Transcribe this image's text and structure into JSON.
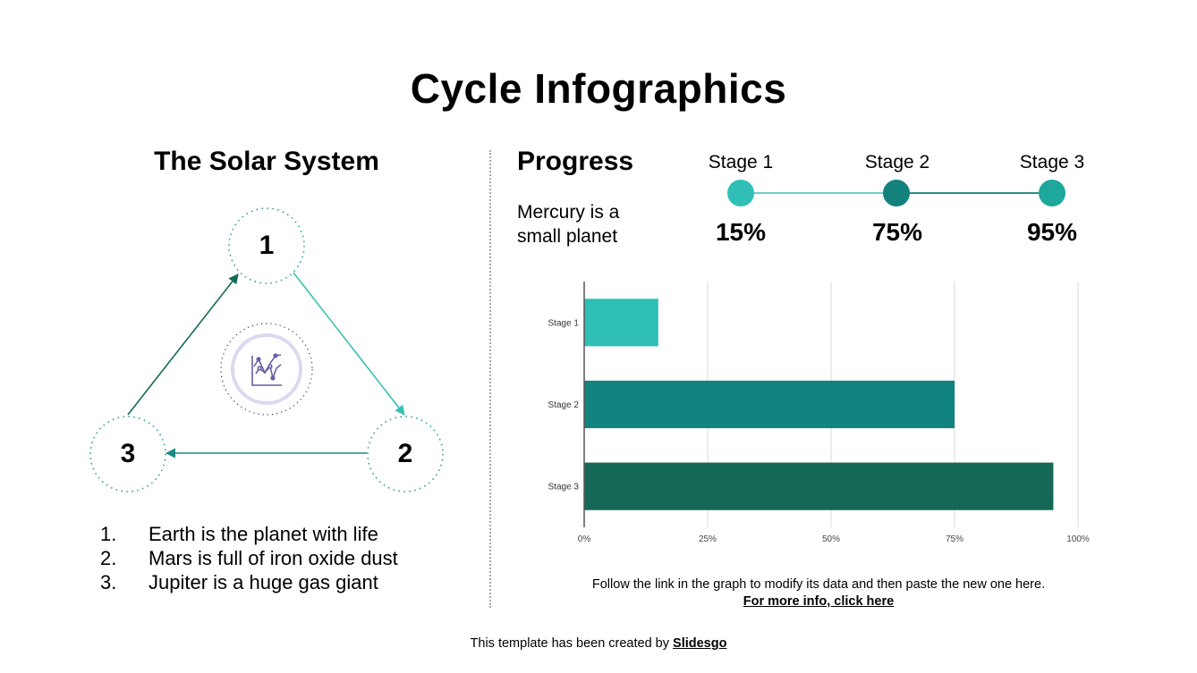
{
  "title": "Cycle Infographics",
  "left": {
    "heading": "The Solar System",
    "cycle": {
      "nodes": [
        {
          "label": "1"
        },
        {
          "label": "2"
        },
        {
          "label": "3"
        }
      ],
      "center_icon": "line-chart-icon",
      "colors": {
        "arrow_1_to_2": "#3bbfb4",
        "arrow_2_to_3": "#1a8a82",
        "arrow_3_to_1": "#156b57",
        "node_border": "#2a9d8f",
        "center_ring": "#7a6fb0"
      }
    },
    "list": [
      {
        "num": "1.",
        "text": "Earth is the planet with life"
      },
      {
        "num": "2.",
        "text": "Mars is full of iron oxide dust"
      },
      {
        "num": "3.",
        "text": "Jupiter is a huge gas giant"
      }
    ]
  },
  "right": {
    "heading": "Progress",
    "subtitle": "Mercury is a small planet",
    "stages": [
      {
        "label": "Stage 1",
        "percent": "15%",
        "color": "#2fbfb6"
      },
      {
        "label": "Stage 2",
        "percent": "75%",
        "color": "#13817c"
      },
      {
        "label": "Stage 3",
        "percent": "95%",
        "color": "#1ea79c"
      }
    ],
    "note_text": "Follow the link in the graph to modify its data and then paste the new one here.",
    "note_link": "For more info, click here"
  },
  "footer": {
    "text": "This template has been created by",
    "link": "Slidesgo"
  },
  "chart_data": {
    "type": "bar",
    "orientation": "horizontal",
    "title": "",
    "categories": [
      "Stage 1",
      "Stage 2",
      "Stage 3"
    ],
    "values": [
      15,
      75,
      95
    ],
    "colors": [
      "#2fbfb6",
      "#11847f",
      "#136956"
    ],
    "xlabel": "",
    "ylabel": "",
    "xlim": [
      0,
      100
    ],
    "xticks": [
      "0%",
      "25%",
      "50%",
      "75%",
      "100%"
    ],
    "grid": true,
    "legend": "none"
  }
}
